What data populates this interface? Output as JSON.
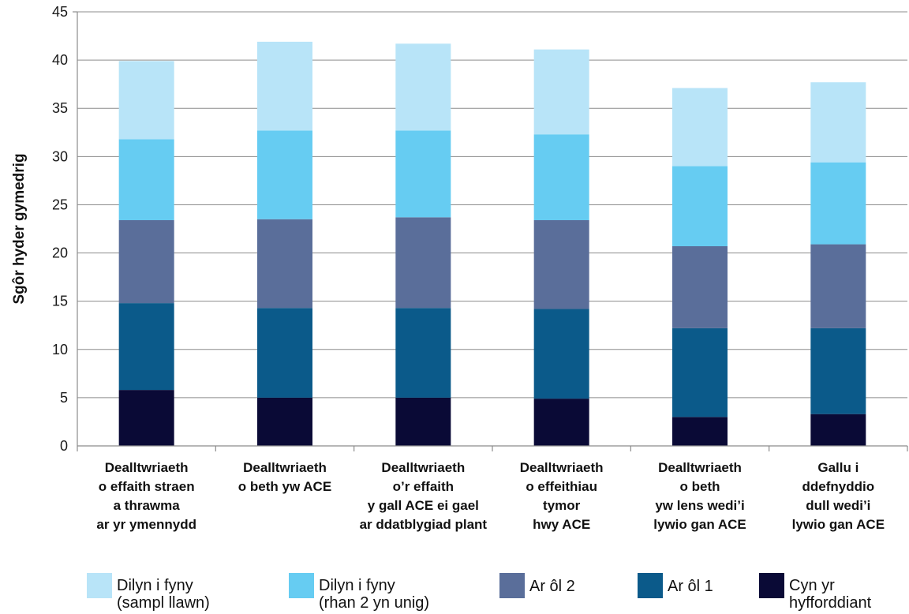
{
  "chart_data": {
    "type": "bar",
    "stacked": true,
    "title": "",
    "xlabel": "",
    "ylabel": "Sgôr hyder gymedrig",
    "ylim": [
      0,
      45
    ],
    "yticks": [
      0,
      5,
      10,
      15,
      20,
      25,
      30,
      35,
      40,
      45
    ],
    "grid": "horizontal",
    "legend_position": "bottom",
    "categories": [
      [
        "Dealltwriaeth",
        "o effaith straen",
        "a thrawma",
        "ar yr ymennydd"
      ],
      [
        "Dealltwriaeth",
        "o beth yw ACE"
      ],
      [
        "Dealltwriaeth",
        "o’r effaith",
        "y gall ACE ei gael",
        "ar ddatblygiad plant"
      ],
      [
        "Dealltwriaeth",
        "o effeithiau",
        "tymor",
        "hwy ACE"
      ],
      [
        "Dealltwriaeth",
        "o beth",
        "yw lens wedi’i",
        "lywio gan ACE"
      ],
      [
        "Gallu i",
        "ddefnyddio",
        "dull wedi’i",
        "lywio gan ACE"
      ]
    ],
    "series": [
      {
        "name": "Cyn yr hyfforddiant",
        "legend_lines": [
          "Cyn yr",
          "hyfforddiant"
        ],
        "color": "#0a0a36",
        "values": [
          5.8,
          5.0,
          5.0,
          4.9,
          3.0,
          3.3
        ]
      },
      {
        "name": "Ar ôl 1",
        "legend_lines": [
          "Ar ôl 1"
        ],
        "color": "#0b5a8a",
        "values": [
          9.0,
          9.3,
          9.3,
          9.3,
          9.2,
          8.9
        ]
      },
      {
        "name": "Ar ôl 2",
        "legend_lines": [
          "Ar ôl 2"
        ],
        "color": "#5a6e9a",
        "values": [
          8.6,
          9.2,
          9.4,
          9.2,
          8.5,
          8.7
        ]
      },
      {
        "name": "Dilyn i fyny (rhan 2 yn unig)",
        "legend_lines": [
          "Dilyn i fyny",
          "(rhan 2 yn unig)"
        ],
        "color": "#66ccf2",
        "values": [
          8.4,
          9.2,
          9.0,
          8.9,
          8.3,
          8.5
        ]
      },
      {
        "name": "Dilyn i fyny (sampl llawn)",
        "legend_lines": [
          "Dilyn i fyny",
          "(sampl llawn)"
        ],
        "color": "#b8e4f8",
        "values": [
          8.1,
          9.2,
          9.0,
          8.8,
          8.1,
          8.3
        ]
      }
    ],
    "legend_order": [
      4,
      3,
      2,
      1,
      0
    ]
  },
  "colors": {
    "axis": "#8c8c8c",
    "grid": "#8c8c8c"
  }
}
